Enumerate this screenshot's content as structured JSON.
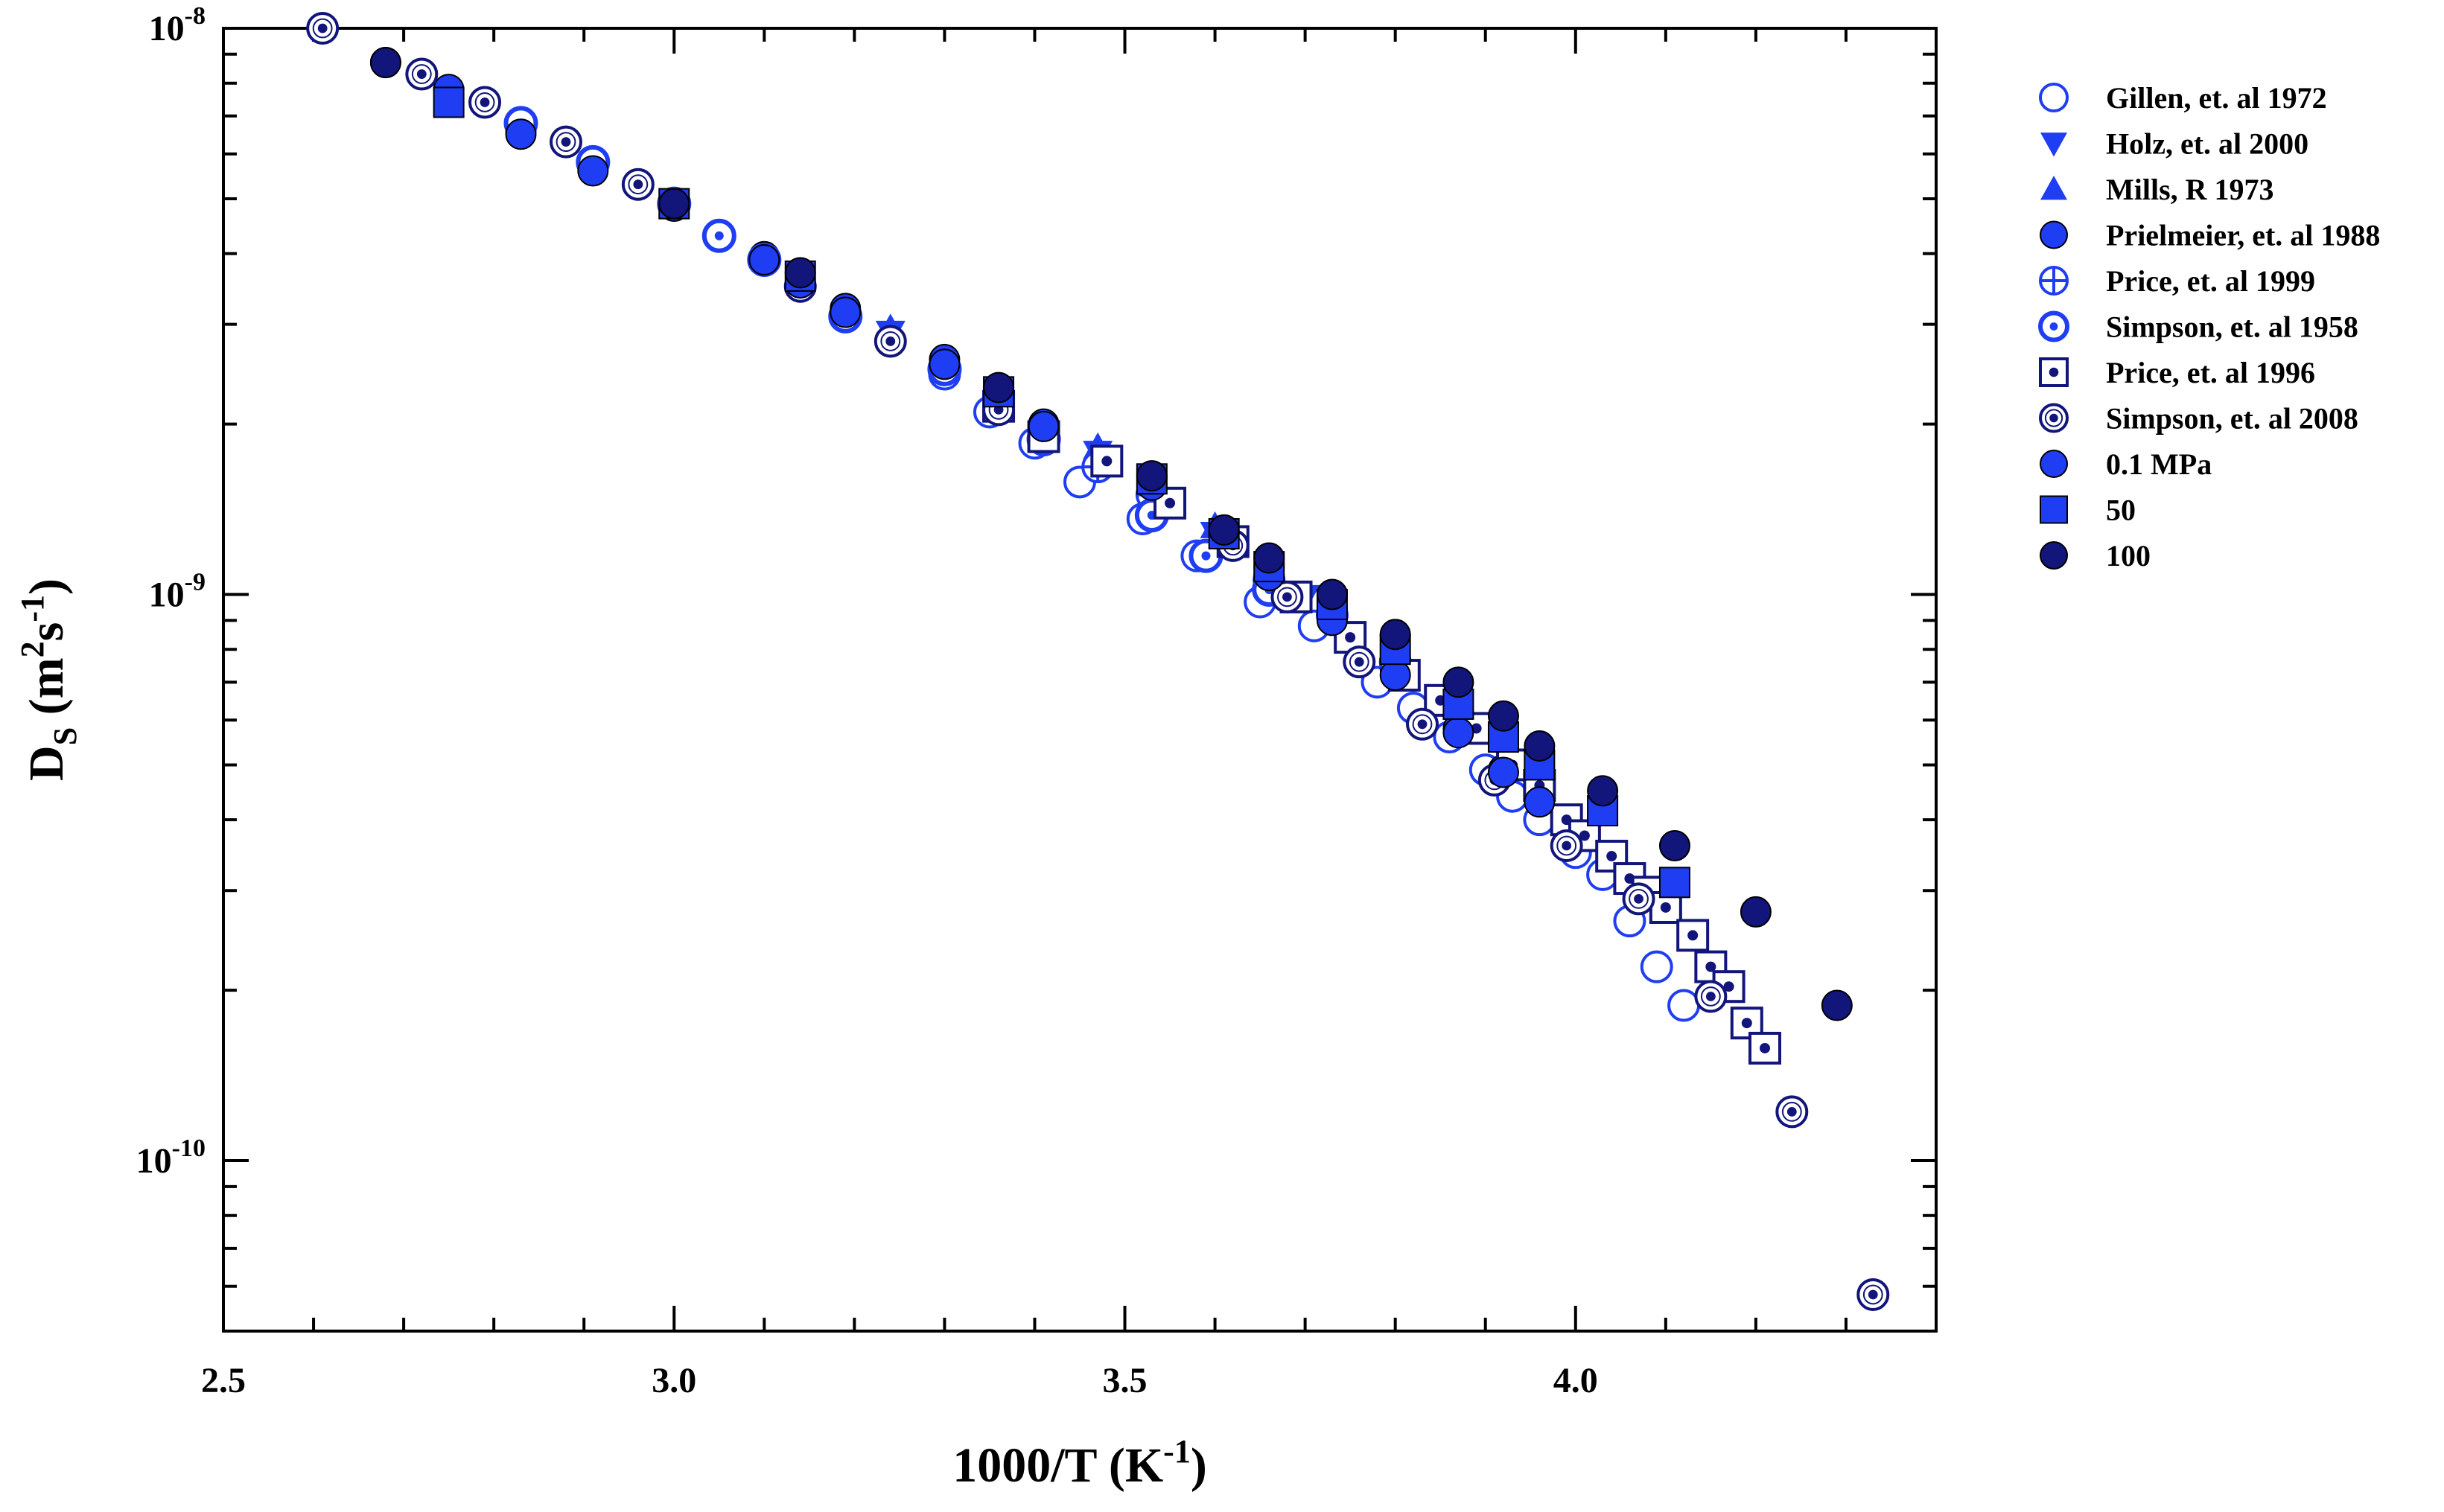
{
  "chart_data": {
    "type": "scatter",
    "xlabel": "1000/T (K",
    "xlabel_sup": "-1",
    "xlabel_close": ")",
    "ylabel": "D",
    "ylabel_sub": "S",
    "ylabel_unit": " (m",
    "ylabel_sup1": "2",
    "ylabel_mid": "s",
    "ylabel_sup2": "-1",
    "ylabel_close": ")",
    "yscale": "log",
    "xlim": [
      2.5,
      4.4
    ],
    "ylim": [
      5e-11,
      1e-08
    ],
    "xticks": [
      2.5,
      3.0,
      3.5,
      4.0
    ],
    "xtick_labels": [
      "2.5",
      "3.0",
      "3.5",
      "4.0"
    ],
    "yticks": [
      {
        "value": 1e-08,
        "base": "10",
        "exp": "-8"
      },
      {
        "value": 1e-09,
        "base": "10",
        "exp": "-9"
      },
      {
        "value": 1e-10,
        "base": "10",
        "exp": "-10"
      }
    ],
    "legend_position": "outside-right",
    "colors": {
      "blue": "#1f3df2",
      "navy": "#12157a",
      "black": "#000000"
    },
    "series": [
      {
        "name": "Gillen, et. al 1972",
        "marker": "open-circle",
        "color": "#1f3df2",
        "x": [
          3.3,
          3.35,
          3.4,
          3.45,
          3.52,
          3.58,
          3.65,
          3.71,
          3.78,
          3.82,
          3.86,
          3.9,
          3.93,
          3.96,
          4.0,
          4.03,
          4.06,
          4.09,
          4.12
        ],
        "y": [
          2.45e-09,
          2.1e-09,
          1.85e-09,
          1.58e-09,
          1.36e-09,
          1.17e-09,
          9.7e-10,
          8.8e-10,
          7e-10,
          6.3e-10,
          5.6e-10,
          4.9e-10,
          4.4e-10,
          4e-10,
          3.5e-10,
          3.2e-10,
          2.65e-10,
          2.2e-10,
          1.88e-10
        ]
      },
      {
        "name": "Holz, et. al 2000",
        "marker": "triangle-down",
        "color": "#1f3df2",
        "x": [
          3.24,
          3.47,
          3.6,
          3.7
        ],
        "y": [
          2.9e-09,
          1.78e-09,
          1.28e-09,
          9.9e-10
        ]
      },
      {
        "name": "Mills, R 1973",
        "marker": "triangle-up",
        "color": "#1f3df2",
        "x": [
          3.24,
          3.47,
          3.6
        ],
        "y": [
          2.95e-09,
          1.82e-09,
          1.32e-09
        ]
      },
      {
        "name": "Prielmeier, et. al 1988",
        "marker": "filled-circle",
        "color": "#1f3df2",
        "x": [
          2.75,
          2.83,
          2.91,
          3.0,
          3.1,
          3.19,
          3.3,
          3.41,
          3.53,
          3.66,
          3.8,
          3.87,
          3.92,
          3.96
        ],
        "y": [
          7.8e-09,
          6.6e-09,
          5.7e-09,
          4.9e-09,
          3.95e-09,
          3.2e-09,
          2.6e-09,
          2e-09,
          1.6e-09,
          1.12e-09,
          7.4e-10,
          5.8e-10,
          4.9e-10,
          4.35e-10
        ]
      },
      {
        "name": "Price, et. al 1999",
        "marker": "crossed-circle",
        "color": "#1f3df2",
        "x": [
          3.41,
          3.47,
          3.53,
          3.66,
          3.73,
          3.8
        ],
        "y": [
          1.95e-09,
          1.68e-09,
          1.5e-09,
          1.06e-09,
          9.2e-10,
          7.6e-10
        ]
      },
      {
        "name": "Simpson, et. al 1958",
        "marker": "dotted-circle",
        "color": "#1f3df2",
        "x": [
          2.83,
          2.91,
          3.0,
          3.05,
          3.1,
          3.19,
          3.3,
          3.41,
          3.53,
          3.59,
          3.66
        ],
        "y": [
          6.8e-09,
          5.8e-09,
          4.9e-09,
          4.3e-09,
          3.9e-09,
          3.1e-09,
          2.5e-09,
          1.88e-09,
          1.38e-09,
          1.17e-09,
          1.02e-09
        ]
      },
      {
        "name": "Price, et. al 1996",
        "marker": "dotted-square",
        "color": "#12157a",
        "x": [
          3.36,
          3.41,
          3.48,
          3.55,
          3.62,
          3.69,
          3.75,
          3.81,
          3.85,
          3.89,
          3.93,
          3.96,
          3.99,
          4.01,
          4.04,
          4.06,
          4.08,
          4.1,
          4.13,
          4.15,
          4.17,
          4.19,
          4.21
        ],
        "y": [
          2.15e-09,
          1.9e-09,
          1.72e-09,
          1.45e-09,
          1.24e-09,
          9.9e-10,
          8.4e-10,
          7.2e-10,
          6.5e-10,
          5.8e-10,
          5e-10,
          4.6e-10,
          4e-10,
          3.75e-10,
          3.45e-10,
          3.15e-10,
          2.98e-10,
          2.8e-10,
          2.5e-10,
          2.2e-10,
          2.03e-10,
          1.75e-10,
          1.58e-10
        ]
      },
      {
        "name": "Simpson, et. al 2008",
        "marker": "dot-ring",
        "color": "#12157a",
        "x": [
          2.61,
          2.72,
          2.79,
          2.88,
          2.96,
          3.14,
          3.24,
          3.36,
          3.62,
          3.68,
          3.76,
          3.83,
          3.91,
          3.99,
          4.07,
          4.15,
          4.24,
          4.33
        ],
        "y": [
          1e-08,
          8.3e-09,
          7.4e-09,
          6.3e-09,
          5.3e-09,
          3.5e-09,
          2.8e-09,
          2.12e-09,
          1.22e-09,
          9.9e-10,
          7.6e-10,
          5.9e-10,
          4.7e-10,
          3.6e-10,
          2.9e-10,
          1.95e-10,
          1.22e-10,
          5.8e-11
        ]
      },
      {
        "name": "0.1 MPa",
        "marker": "filled-circle",
        "color": "#1f3df2",
        "x": [
          2.68,
          2.83,
          2.91,
          3.0,
          3.1,
          3.14,
          3.19,
          3.3,
          3.41,
          3.53,
          3.66,
          3.73,
          3.8,
          3.87,
          3.92,
          3.96
        ],
        "y": [
          8.7e-09,
          6.5e-09,
          5.6e-09,
          4.85e-09,
          3.9e-09,
          3.55e-09,
          3.15e-09,
          2.55e-09,
          1.98e-09,
          1.56e-09,
          1.08e-09,
          9e-10,
          7.2e-10,
          5.7e-10,
          4.85e-10,
          4.3e-10
        ]
      },
      {
        "name": "50",
        "marker": "filled-square",
        "color": "#1f3df2",
        "x": [
          2.75,
          3.0,
          3.14,
          3.36,
          3.53,
          3.61,
          3.66,
          3.73,
          3.8,
          3.87,
          3.92,
          3.96,
          4.03,
          4.11
        ],
        "y": [
          7.4e-09,
          4.9e-09,
          3.65e-09,
          2.28e-09,
          1.6e-09,
          1.28e-09,
          1.12e-09,
          9.6e-10,
          8e-10,
          6.4e-10,
          5.6e-10,
          5e-10,
          4.15e-10,
          3.1e-10
        ]
      },
      {
        "name": "100",
        "marker": "filled-circle",
        "color": "#12157a",
        "x": [
          2.68,
          3.0,
          3.14,
          3.36,
          3.53,
          3.61,
          3.66,
          3.73,
          3.8,
          3.87,
          3.92,
          3.96,
          4.03,
          4.11,
          4.2,
          4.29
        ],
        "y": [
          8.7e-09,
          4.9e-09,
          3.7e-09,
          2.32e-09,
          1.62e-09,
          1.3e-09,
          1.16e-09,
          1e-09,
          8.5e-10,
          7e-10,
          6.1e-10,
          5.4e-10,
          4.5e-10,
          3.6e-10,
          2.75e-10,
          1.88e-10
        ]
      }
    ]
  }
}
